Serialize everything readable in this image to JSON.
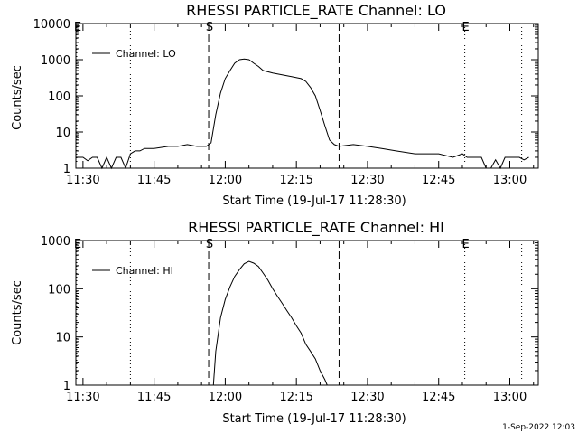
{
  "footer": {
    "date": "1-Sep-2022 12:03"
  },
  "chart_data": [
    {
      "type": "line",
      "title": "RHESSI PARTICLE_RATE Channel: LO",
      "xlabel": "Start Time (19-Jul-17 11:28:30)",
      "ylabel": "Counts/sec",
      "yscale": "log",
      "xlim": [
        "11:28:30",
        "13:06:00"
      ],
      "ylim": [
        1,
        10000
      ],
      "xticks": [
        "11:30",
        "11:45",
        "12:00",
        "12:15",
        "12:30",
        "12:45",
        "13:00"
      ],
      "yticks": [
        {
          "v": 1,
          "label": "1"
        },
        {
          "v": 10,
          "label": "10"
        },
        {
          "v": 100,
          "label": "100"
        },
        {
          "v": 1000,
          "label": "1000"
        },
        {
          "v": 10000,
          "label": "10000"
        }
      ],
      "markers": [
        {
          "time": "11:28:30",
          "label": "E",
          "style": "dotted"
        },
        {
          "time": "11:40:00",
          "label": "",
          "style": "dotted"
        },
        {
          "time": "11:56:30",
          "label": "S",
          "style": "dashed"
        },
        {
          "time": "12:24:00",
          "label": "",
          "style": "dashed"
        },
        {
          "time": "12:50:30",
          "label": "E",
          "style": "dotted"
        },
        {
          "time": "13:02:30",
          "label": "",
          "style": "dotted"
        }
      ],
      "legend": {
        "position": "top-left",
        "entries": [
          "Channel: LO"
        ]
      },
      "series": [
        {
          "name": "Channel: LO",
          "points": [
            [
              "11:28:30",
              2
            ],
            [
              "11:30:00",
              2
            ],
            [
              "11:31:00",
              1.6
            ],
            [
              "11:32:00",
              2
            ],
            [
              "11:33:00",
              2
            ],
            [
              "11:34:00",
              1
            ],
            [
              "11:35:00",
              2
            ],
            [
              "11:36:00",
              1
            ],
            [
              "11:37:00",
              2
            ],
            [
              "11:38:00",
              2
            ],
            [
              "11:39:00",
              1
            ],
            [
              "11:40:00",
              2.5
            ],
            [
              "11:41:00",
              3
            ],
            [
              "11:42:00",
              3
            ],
            [
              "11:43:00",
              3.5
            ],
            [
              "11:45:00",
              3.5
            ],
            [
              "11:48:00",
              4
            ],
            [
              "11:50:00",
              4
            ],
            [
              "11:52:00",
              4.5
            ],
            [
              "11:54:00",
              4
            ],
            [
              "11:56:00",
              4
            ],
            [
              "11:57:00",
              5
            ],
            [
              "11:58:00",
              30
            ],
            [
              "11:59:00",
              120
            ],
            [
              "12:00:00",
              300
            ],
            [
              "12:01:00",
              500
            ],
            [
              "12:02:00",
              800
            ],
            [
              "12:03:00",
              1000
            ],
            [
              "12:04:00",
              1050
            ],
            [
              "12:05:00",
              1000
            ],
            [
              "12:06:00",
              800
            ],
            [
              "12:07:00",
              650
            ],
            [
              "12:08:00",
              500
            ],
            [
              "12:10:00",
              430
            ],
            [
              "12:12:00",
              380
            ],
            [
              "12:14:00",
              340
            ],
            [
              "12:16:00",
              300
            ],
            [
              "12:17:00",
              250
            ],
            [
              "12:18:00",
              170
            ],
            [
              "12:19:00",
              100
            ],
            [
              "12:20:00",
              40
            ],
            [
              "12:21:00",
              15
            ],
            [
              "12:22:00",
              6
            ],
            [
              "12:23:00",
              4.5
            ],
            [
              "12:24:00",
              4
            ],
            [
              "12:27:00",
              4.5
            ],
            [
              "12:30:00",
              4
            ],
            [
              "12:33:00",
              3.5
            ],
            [
              "12:36:00",
              3
            ],
            [
              "12:40:00",
              2.5
            ],
            [
              "12:45:00",
              2.5
            ],
            [
              "12:48:00",
              2
            ],
            [
              "12:50:00",
              2.5
            ],
            [
              "12:51:00",
              2
            ],
            [
              "12:54:00",
              2
            ],
            [
              "12:55:00",
              1
            ],
            [
              "12:56:00",
              1
            ],
            [
              "12:57:00",
              1.7
            ],
            [
              "12:58:00",
              1
            ],
            [
              "12:59:00",
              2
            ],
            [
              "13:00:00",
              2
            ],
            [
              "13:02:00",
              2
            ],
            [
              "13:03:00",
              1.7
            ],
            [
              "13:04:00",
              2
            ]
          ]
        }
      ]
    },
    {
      "type": "line",
      "title": "RHESSI PARTICLE_RATE Channel: HI",
      "xlabel": "Start Time (19-Jul-17 11:28:30)",
      "ylabel": "Counts/sec",
      "yscale": "log",
      "xlim": [
        "11:28:30",
        "13:06:00"
      ],
      "ylim": [
        1,
        1000
      ],
      "xticks": [
        "11:30",
        "11:45",
        "12:00",
        "12:15",
        "12:30",
        "12:45",
        "13:00"
      ],
      "yticks": [
        {
          "v": 1,
          "label": "1"
        },
        {
          "v": 10,
          "label": "10"
        },
        {
          "v": 100,
          "label": "100"
        },
        {
          "v": 1000,
          "label": "1000"
        }
      ],
      "markers": [
        {
          "time": "11:28:30",
          "label": "E",
          "style": "dotted"
        },
        {
          "time": "11:40:00",
          "label": "",
          "style": "dotted"
        },
        {
          "time": "11:56:30",
          "label": "S",
          "style": "dashed"
        },
        {
          "time": "12:24:00",
          "label": "",
          "style": "dashed"
        },
        {
          "time": "12:50:30",
          "label": "E",
          "style": "dotted"
        },
        {
          "time": "13:02:30",
          "label": "",
          "style": "dotted"
        }
      ],
      "legend": {
        "position": "top-left",
        "entries": [
          "Channel: HI"
        ]
      },
      "series": [
        {
          "name": "Channel: HI",
          "points": [
            [
              "11:57:30",
              1
            ],
            [
              "11:58:00",
              5
            ],
            [
              "11:59:00",
              25
            ],
            [
              "12:00:00",
              60
            ],
            [
              "12:01:00",
              110
            ],
            [
              "12:02:00",
              180
            ],
            [
              "12:03:00",
              250
            ],
            [
              "12:04:00",
              330
            ],
            [
              "12:05:00",
              370
            ],
            [
              "12:06:00",
              340
            ],
            [
              "12:07:00",
              290
            ],
            [
              "12:08:00",
              210
            ],
            [
              "12:09:00",
              150
            ],
            [
              "12:10:00",
              100
            ],
            [
              "12:11:00",
              70
            ],
            [
              "12:12:00",
              50
            ],
            [
              "12:13:00",
              35
            ],
            [
              "12:14:00",
              25
            ],
            [
              "12:15:00",
              17
            ],
            [
              "12:16:00",
              12
            ],
            [
              "12:17:00",
              7
            ],
            [
              "12:18:00",
              5
            ],
            [
              "12:19:00",
              3.5
            ],
            [
              "12:20:00",
              2
            ],
            [
              "12:21:00",
              1.3
            ],
            [
              "12:21:30",
              1
            ]
          ]
        }
      ]
    }
  ]
}
